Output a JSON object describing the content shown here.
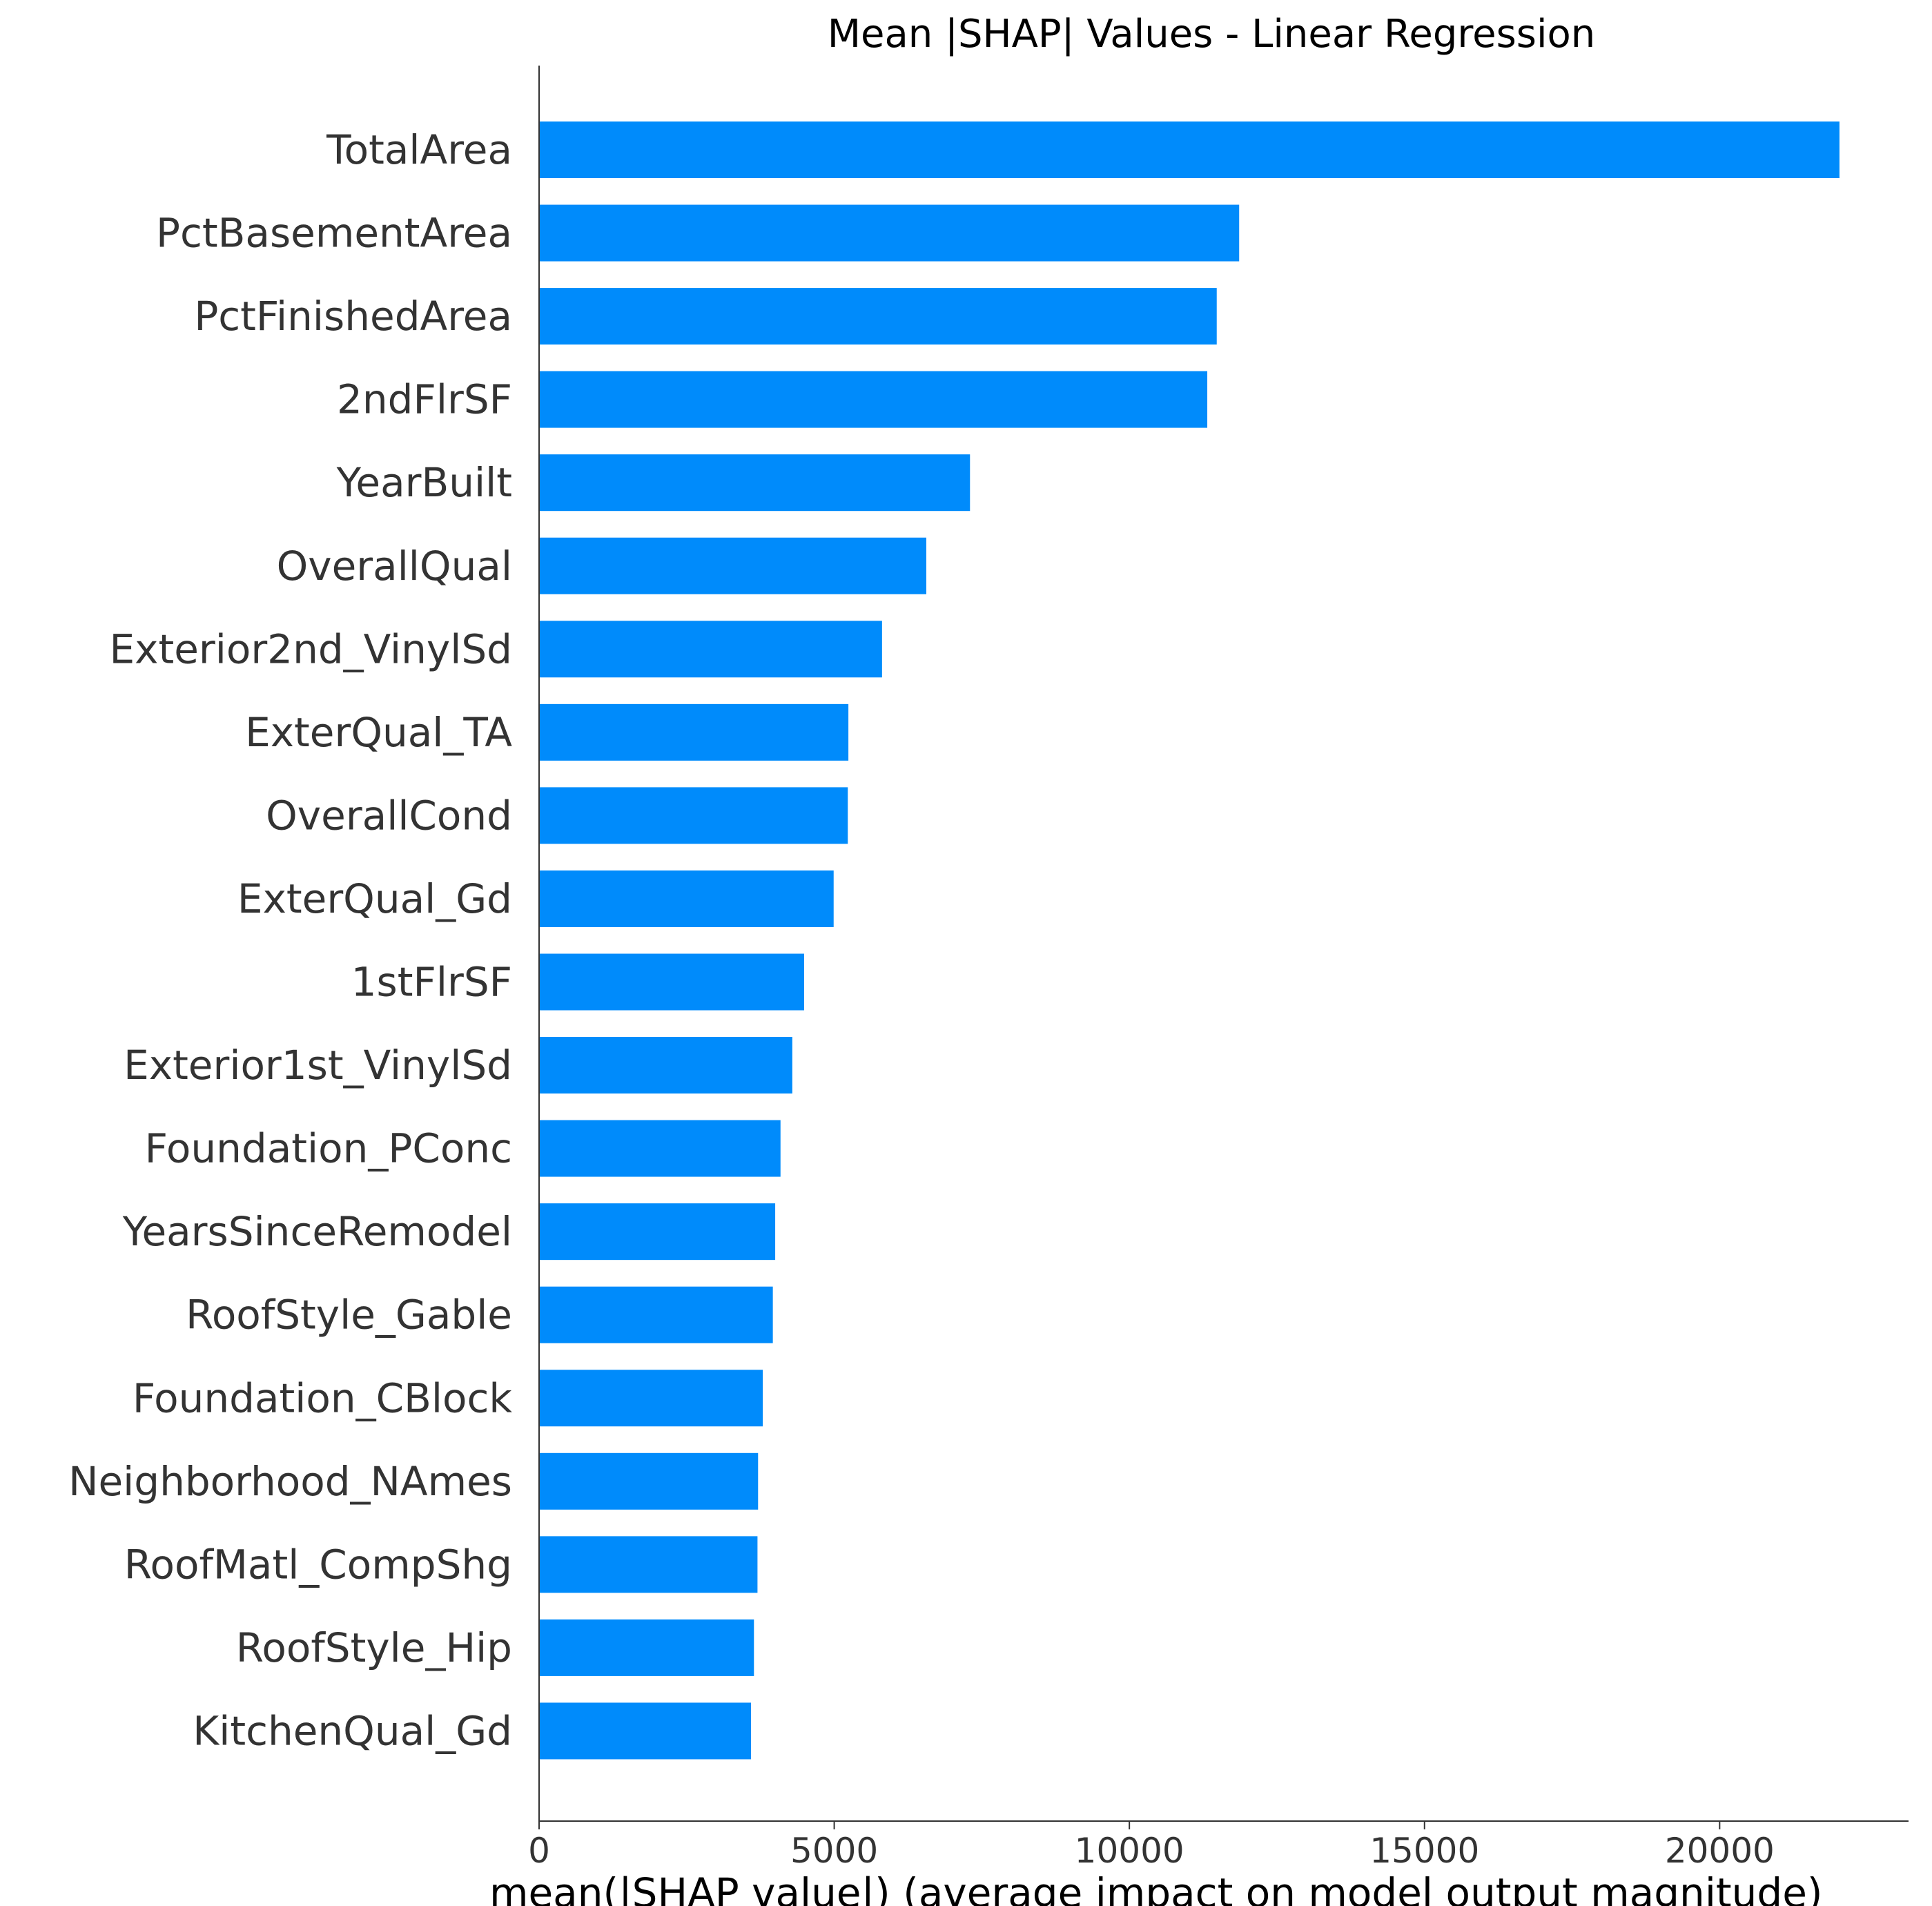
{
  "chart_data": {
    "type": "bar",
    "orientation": "horizontal",
    "title": "Mean |SHAP| Values - Linear Regression",
    "xlabel": "mean(|SHAP value|) (average impact on model output magnitude)",
    "ylabel": "",
    "xlim": [
      0,
      23200
    ],
    "xticks": [
      0,
      5000,
      10000,
      15000,
      20000
    ],
    "bar_color": "#008bfb",
    "categories": [
      "TotalArea",
      "PctBasementArea",
      "PctFinishedArea",
      "2ndFlrSF",
      "YearBuilt",
      "OverallQual",
      "Exterior2nd_VinylSd",
      "ExterQual_TA",
      "OverallCond",
      "ExterQual_Gd",
      "1stFlrSF",
      "Exterior1st_VinylSd",
      "Foundation_PConc",
      "YearsSinceRemodel",
      "RoofStyle_Gable",
      "Foundation_CBlock",
      "Neighborhood_NAmes",
      "RoofMatl_CompShg",
      "RoofStyle_Hip",
      "KitchenQual_Gd"
    ],
    "values": [
      22030,
      11860,
      11480,
      11320,
      7300,
      6560,
      5810,
      5240,
      5230,
      4990,
      4490,
      4290,
      4090,
      4000,
      3960,
      3790,
      3710,
      3700,
      3640,
      3590
    ]
  }
}
